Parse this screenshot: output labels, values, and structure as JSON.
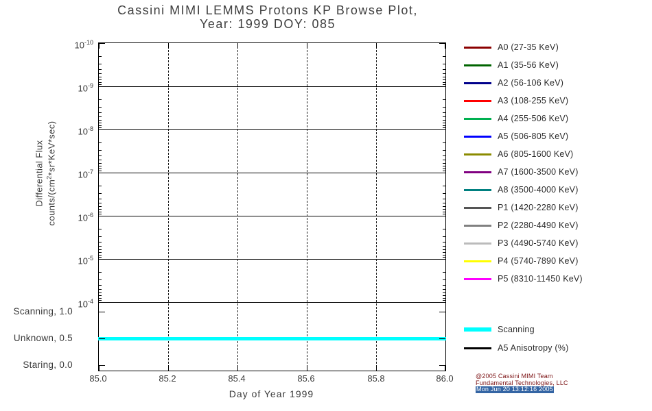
{
  "title": {
    "line1": "Cassini MIMI LEMMS Protons KP Browse Plot,",
    "line2": "Year: 1999 DOY: 085"
  },
  "y_axis": {
    "label_line1": "Differential Flux",
    "label_line2_pre": "counts/(cm",
    "label_line2_sup": "2",
    "label_line2_post": "*sr*KeV*sec)",
    "ticks": [
      {
        "base": "10",
        "exp": "-10"
      },
      {
        "base": "10",
        "exp": "-9"
      },
      {
        "base": "10",
        "exp": "-8"
      },
      {
        "base": "10",
        "exp": "-7"
      },
      {
        "base": "10",
        "exp": "-6"
      },
      {
        "base": "10",
        "exp": "-5"
      },
      {
        "base": "10",
        "exp": "-4"
      }
    ]
  },
  "status_axis": {
    "labels": [
      "Scanning, 1.0",
      "Unknown, 0.5",
      "Staring, 0.0"
    ]
  },
  "x_axis": {
    "ticks": [
      "85.0",
      "85.2",
      "85.4",
      "85.6",
      "85.8",
      "86.0"
    ],
    "label": "Day of Year 1999"
  },
  "legend": {
    "items": [
      {
        "label": "A0 (27-35 KeV)",
        "color": "#8B0000"
      },
      {
        "label": "A1 (35-56 KeV)",
        "color": "#006400"
      },
      {
        "label": "A2 (56-106 KeV)",
        "color": "#00008B"
      },
      {
        "label": "A3 (108-255 KeV)",
        "color": "#FF0000"
      },
      {
        "label": "A4 (255-506 KeV)",
        "color": "#00B050"
      },
      {
        "label": "A5 (506-805 KeV)",
        "color": "#0000FF"
      },
      {
        "label": "A6 (805-1600 KeV)",
        "color": "#8B8B00"
      },
      {
        "label": "A7 (1600-3500 KeV)",
        "color": "#800080"
      },
      {
        "label": "A8 (3500-4000 KeV)",
        "color": "#008080"
      },
      {
        "label": "P1 (1420-2280 KeV)",
        "color": "#555555"
      },
      {
        "label": "P2 (2280-4490 KeV)",
        "color": "#808080"
      },
      {
        "label": "P3 (4490-5740 KeV)",
        "color": "#BBBBBB"
      },
      {
        "label": "P4 (5740-7890 KeV)",
        "color": "#FFFF00"
      },
      {
        "label": "P5 (8310-11450 KeV)",
        "color": "#FF00FF"
      },
      {
        "label": "Scanning",
        "color": "#00FFFF"
      },
      {
        "label": "A5 Anisotropy (%)",
        "color": "#000000"
      }
    ]
  },
  "scanning_line": {
    "color": "#00FFFF",
    "status": "Unknown",
    "value": 0.5
  },
  "credits": {
    "line1": "@2005 Cassini MIMI Team",
    "line2": "Fundamental Technologies, LLC",
    "line3": "Mon Jun 20 13:12:16 2005",
    "color": "#7B1113",
    "highlight_bg": "#3465A4",
    "highlight_fg": "#FFFFFF"
  },
  "chart_data": {
    "type": "line",
    "title": "Cassini MIMI LEMMS Protons KP Browse Plot, Year: 1999 DOY: 085",
    "xlabel": "Day of Year 1999",
    "ylabel": "Differential Flux counts/(cm^2*sr*KeV*sec)",
    "x_range": [
      85.0,
      86.0
    ],
    "x_ticks": [
      85.0,
      85.2,
      85.4,
      85.6,
      85.8,
      86.0
    ],
    "grid": true,
    "legend_position": "right",
    "flux_axis": {
      "scale": "log",
      "tick_labels": [
        "1e-10",
        "1e-9",
        "1e-8",
        "1e-7",
        "1e-6",
        "1e-5",
        "1e-4"
      ],
      "top_value": "1e-10",
      "bottom_value": "1e-4",
      "note": "no flux data plotted for any channel on this day"
    },
    "status_axis": {
      "ticks": [
        {
          "label": "Scanning",
          "value": 1.0
        },
        {
          "label": "Unknown",
          "value": 0.5
        },
        {
          "label": "Staring",
          "value": 0.0
        }
      ]
    },
    "series": [
      {
        "name": "Scanning",
        "color": "#00FFFF",
        "x": [
          85.0,
          86.0
        ],
        "y": [
          0.5,
          0.5
        ],
        "description": "instrument status line, constant at Unknown (0.5) for the full day"
      }
    ],
    "legend_entries": [
      "A0 (27-35 KeV)",
      "A1 (35-56 KeV)",
      "A2 (56-106 KeV)",
      "A3 (108-255 KeV)",
      "A4 (255-506 KeV)",
      "A5 (506-805 KeV)",
      "A6 (805-1600 KeV)",
      "A7 (1600-3500 KeV)",
      "A8 (3500-4000 KeV)",
      "P1 (1420-2280 KeV)",
      "P2 (2280-4490 KeV)",
      "P3 (4490-5740 KeV)",
      "P4 (5740-7890 KeV)",
      "P5 (8310-11450 KeV)",
      "Scanning",
      "A5 Anisotropy (%)"
    ]
  }
}
